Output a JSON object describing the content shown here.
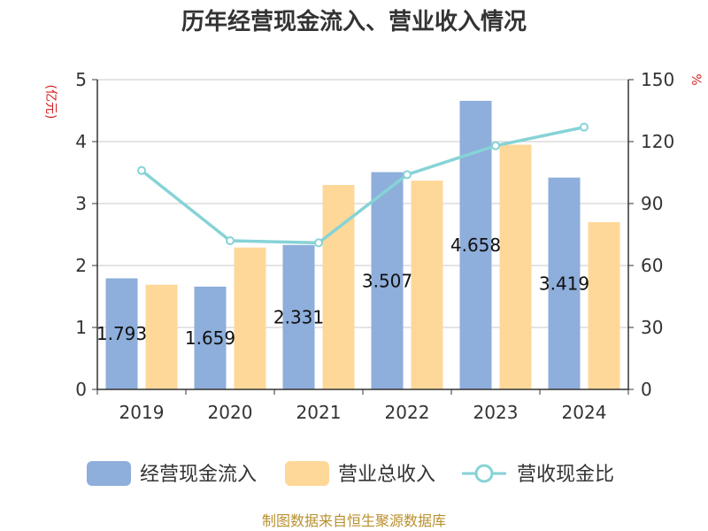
{
  "chart_data": {
    "type": "bar",
    "title": "历年经营现金流入、营业收入情况",
    "categories": [
      "2019",
      "2020",
      "2021",
      "2022",
      "2023",
      "2024"
    ],
    "series": [
      {
        "name": "经营现金流入",
        "type": "bar",
        "axis": "left",
        "values": [
          1.793,
          1.659,
          2.331,
          3.507,
          4.658,
          3.419
        ],
        "labels": [
          "1.793",
          "1.659",
          "2.331",
          "3.507",
          "4.658",
          "3.419"
        ],
        "color": "#8eaedb"
      },
      {
        "name": "营业总收入",
        "type": "bar",
        "axis": "left",
        "values": [
          1.69,
          2.29,
          3.3,
          3.37,
          3.95,
          2.7
        ],
        "color": "#fed898"
      },
      {
        "name": "营收现金比",
        "type": "line",
        "axis": "right",
        "values": [
          106,
          72,
          71,
          104,
          118,
          127
        ],
        "color": "#86d3d6"
      }
    ],
    "y_left": {
      "label": "(亿元)",
      "min": 0,
      "max": 5,
      "ticks": [
        "0",
        "1",
        "2",
        "3",
        "4",
        "5"
      ]
    },
    "y_right": {
      "label": "%",
      "min": 0,
      "max": 150,
      "ticks": [
        "0",
        "30",
        "60",
        "90",
        "120",
        "150"
      ]
    },
    "grid": true,
    "legend_position": "bottom"
  },
  "source": "制图数据来自恒生聚源数据库"
}
